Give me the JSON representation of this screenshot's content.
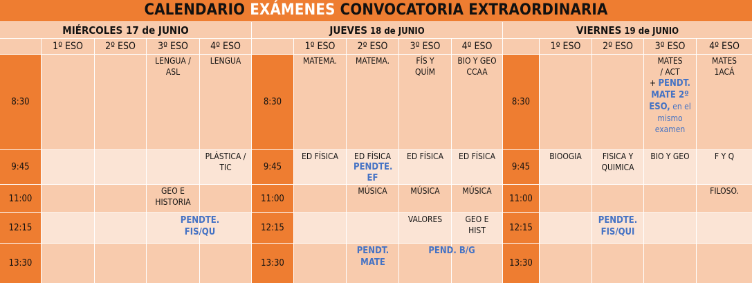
{
  "title": {
    "part1": "CALENDARIO ",
    "highlight": "EXÁMENES",
    "part2": " CONVOCATORIA EXTRAORDINARIA"
  },
  "days": [
    {
      "name": "MIÉRCOLES 17 de JUNIO",
      "label_main": "MIÉRCOLES 17 de JUNIO",
      "label_rest": ""
    },
    {
      "name": "JUEVES 18 de JUNIO",
      "label_main": "JUEVES",
      "label_rest": " 18 de JUNIO"
    },
    {
      "name": "VIERNES 19 de JUNIO",
      "label_main": "VIERNES",
      "label_rest": " 19 de JUNIO"
    }
  ],
  "grades": [
    "1º ESO",
    "2º ESO",
    "3º ESO",
    "4º ESO"
  ],
  "times": [
    "8:30",
    "9:45",
    "11:00",
    "12:15",
    "13:30"
  ],
  "cells": {
    "wed": {
      "r0": [
        "",
        "",
        "LENGUA / ASL",
        "LENGUA"
      ],
      "r1": [
        "",
        "",
        "",
        "PLÁSTICA / TIC"
      ],
      "r2": [
        "",
        "",
        "GEO E HISTORIA",
        ""
      ],
      "r3_span": "PENDTE. FIS/QU",
      "r4": [
        "",
        "",
        "",
        ""
      ]
    },
    "thu": {
      "r0": [
        "MATEMA.",
        "MATEMA.",
        "FÍS Y QUÍM",
        "BIO Y GEO CCAA"
      ],
      "r1": [
        "ED FÍSICA",
        "ED FÍSICA",
        "ED FÍSICA",
        "ED FÍSICA"
      ],
      "r1_extra": "PENDTE. EF",
      "r2": [
        "",
        "MÚSICA",
        "MÚSICA",
        "MÚSICA"
      ],
      "r3": [
        "",
        "",
        "VALORES",
        "GEO E HIST"
      ],
      "r4_c1": "PENDT. MATE",
      "r4_span": "PEND. B/G"
    },
    "fri": {
      "r0_c2_main": "MATES / ACT",
      "r0_c2_plus": "+",
      "r0_c2_pend": "PENDT. MATE 2º ESO,",
      "r0_c2_note": "en el mismo examen",
      "r0": [
        "",
        "",
        "",
        "MATES 1ACÁ"
      ],
      "r1": [
        "BIOOGIA",
        "FISICA Y QUIMICA",
        "BIO Y GEO",
        "F Y Q"
      ],
      "r2": [
        "",
        "",
        "",
        "FILOSO."
      ],
      "r3_c1": "PENDTE. FIS/QUI",
      "r4": [
        "",
        "",
        "",
        ""
      ]
    }
  },
  "colors": {
    "orange": "#ee7d31",
    "peach": "#f8cbad",
    "light": "#fbe4d5",
    "blue": "#4472c4"
  }
}
